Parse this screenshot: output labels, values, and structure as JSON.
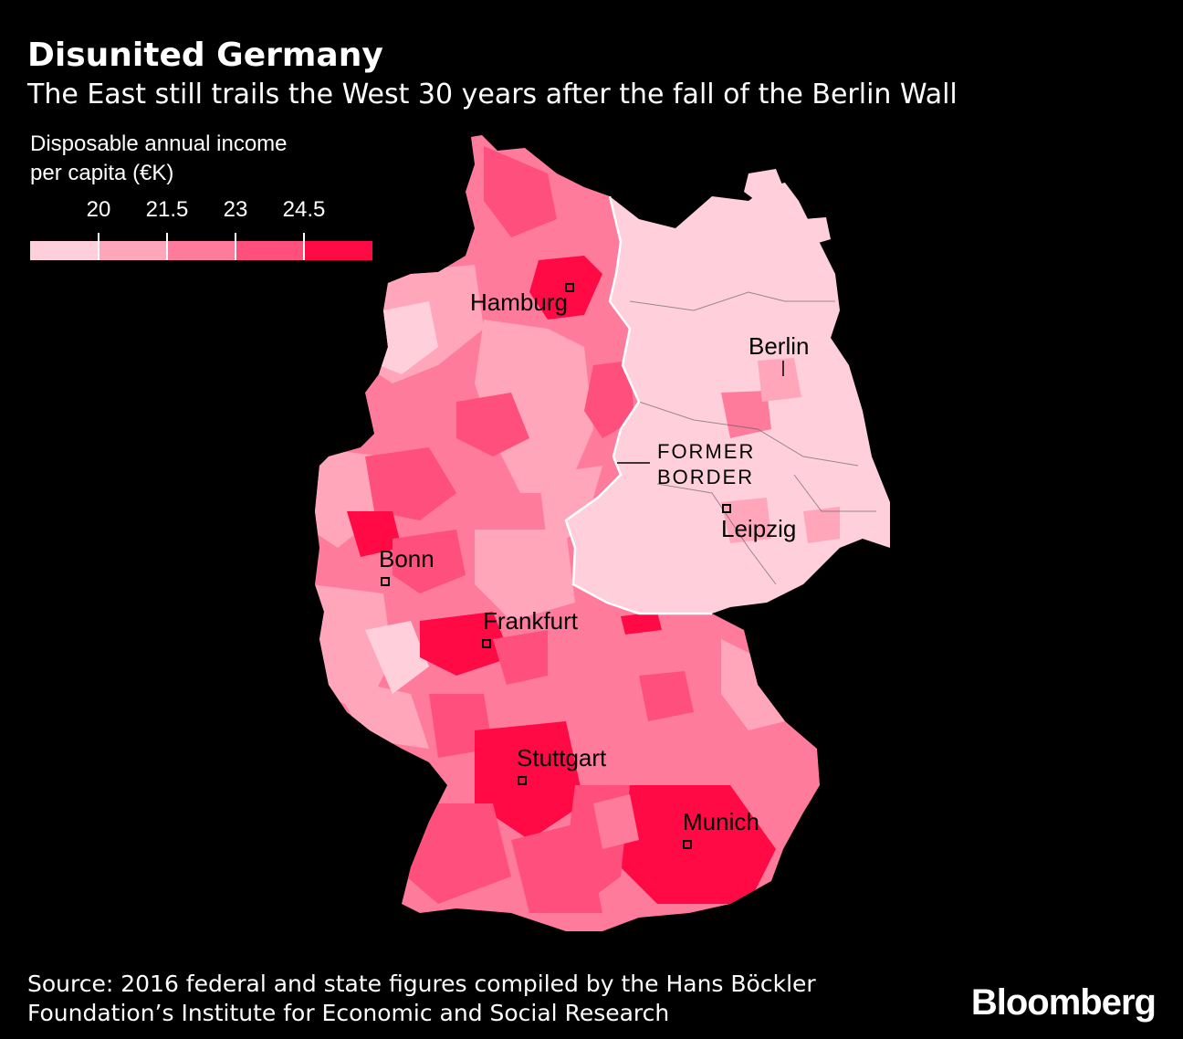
{
  "title": "Disunited Germany",
  "subtitle": "The East still trails the West 30 years after the fall of the Berlin Wall",
  "legend": {
    "title_line1": "Disposable annual income",
    "title_line2": "per capita (€K)",
    "ticks": [
      "20",
      "21.5",
      "23",
      "24.5"
    ],
    "colors": [
      "#ffd0dc",
      "#ffa6bb",
      "#ff7b9c",
      "#ff4f7c",
      "#ff0a45"
    ]
  },
  "map": {
    "cities": {
      "hamburg": "Hamburg",
      "berlin": "Berlin",
      "leipzig": "Leipzig",
      "bonn": "Bonn",
      "frankfurt": "Frankfurt",
      "stuttgart": "Stuttgart",
      "munich": "Munich"
    },
    "border_label_line1": "FORMER",
    "border_label_line2": "BORDER"
  },
  "source_line1": "Source: 2016 federal and state figures compiled by the Hans Böckler",
  "source_line2": "Foundation’s Institute for Economic and Social Research",
  "logo": "Bloomberg"
}
